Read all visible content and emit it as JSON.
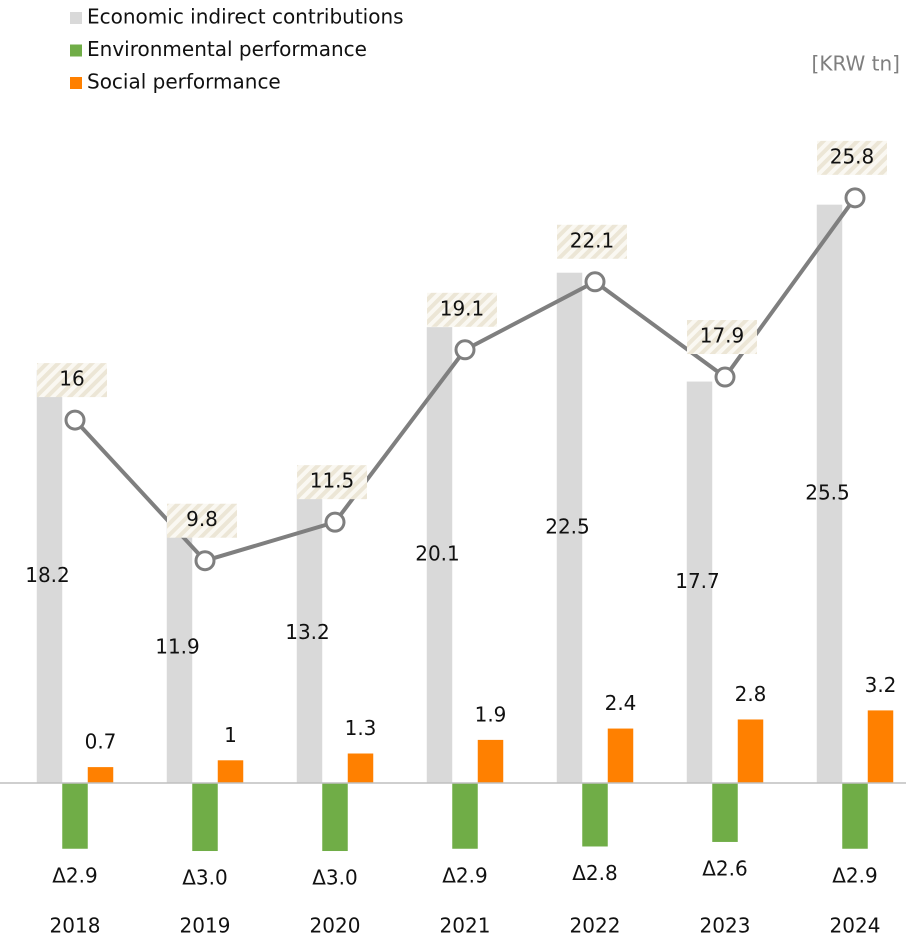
{
  "chart_data": {
    "type": "bar",
    "unit_label": "[KRW tn]",
    "categories": [
      "2018",
      "2019",
      "2020",
      "2021",
      "2022",
      "2023",
      "2024"
    ],
    "ylim": [
      -4,
      30
    ],
    "legend": "top-left",
    "series": [
      {
        "name": "Economic indirect contributions",
        "color": "#d9d9d9",
        "values": [
          18.2,
          11.9,
          13.2,
          20.1,
          22.5,
          17.7,
          25.5
        ]
      },
      {
        "name": "Environmental performance",
        "color": "#70ad47",
        "values": [
          -2.9,
          -3.0,
          -3.0,
          -2.9,
          -2.8,
          -2.6,
          -2.9
        ],
        "value_labels": [
          "Δ2.9",
          "Δ3.0",
          "Δ3.0",
          "Δ2.9",
          "Δ2.8",
          "Δ2.6",
          "Δ2.9"
        ]
      },
      {
        "name": "Social performance",
        "color": "#ff8000",
        "values": [
          0.7,
          1.0,
          1.3,
          1.9,
          2.4,
          2.8,
          3.2
        ]
      },
      {
        "type": "line",
        "color": "#7f7f7f",
        "values": [
          16.0,
          9.8,
          11.5,
          19.1,
          22.1,
          17.9,
          25.8
        ]
      }
    ]
  }
}
